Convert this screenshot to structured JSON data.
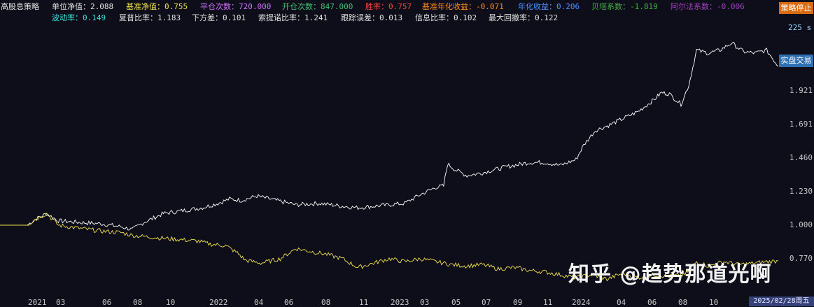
{
  "title": "高股息策略",
  "stats_row1": [
    {
      "label": "单位净值：",
      "value": "2.088",
      "color": "#e0e0e0"
    },
    {
      "label": "基准净值：",
      "value": "0.755",
      "color": "#f2e14b"
    },
    {
      "label": "平仓次数：",
      "value": "720.000",
      "color": "#d070ff"
    },
    {
      "label": "开仓次数：",
      "value": "847.000",
      "color": "#40c070"
    },
    {
      "label": "胜率：",
      "value": "0.757",
      "color": "#ff4040"
    },
    {
      "label": "基准年化收益：",
      "value": "-0.071",
      "color": "#ff8c1a"
    },
    {
      "label": "年化收益：",
      "value": "0.206",
      "color": "#4f8fff"
    },
    {
      "label": "贝塔系数：",
      "value": "-1.819",
      "color": "#40b040"
    },
    {
      "label": "阿尔法系数：",
      "value": "-0.006",
      "color": "#a040c0"
    }
  ],
  "stats_row2": [
    {
      "label": "波动率：",
      "value": "0.149",
      "color": "#40e0e0"
    },
    {
      "label": "夏普比率：",
      "value": "1.183",
      "color": "#e0e0e0"
    },
    {
      "label": "下方差：",
      "value": "0.101",
      "color": "#e0e0e0"
    },
    {
      "label": "索提诺比率：",
      "value": "1.241",
      "color": "#e0e0e0"
    },
    {
      "label": "跟踪误差：",
      "value": "0.013",
      "color": "#e0e0e0"
    },
    {
      "label": "信息比率：",
      "value": "0.102",
      "color": "#e0e0e0"
    },
    {
      "label": "最大回撤率：",
      "value": "0.122",
      "color": "#e0e0e0"
    }
  ],
  "buttons": {
    "stop": "策略停止"
  },
  "badges": {
    "live": "实盘交易",
    "interval": "225 s",
    "date": "2025/02/28周五"
  },
  "watermark": "知乎 @趋势那道光啊",
  "chart_data": {
    "type": "line",
    "yticks": [
      "1.921",
      "1.691",
      "1.460",
      "1.230",
      "1.000",
      "0.770"
    ],
    "ytick_values": [
      1.921,
      1.691,
      1.46,
      1.23,
      1.0,
      0.77
    ],
    "xticks": [
      "2021",
      "03",
      "06",
      "08",
      "10",
      "2022",
      "04",
      "06",
      "08",
      "11",
      "2023",
      "03",
      "05",
      "07",
      "09",
      "11",
      "2024",
      "04",
      "06",
      "08",
      "10"
    ],
    "series": [
      {
        "name": "单位净值",
        "color": "#ffffff",
        "points": [
          [
            0,
            1.0
          ],
          [
            0.035,
            1.0
          ],
          [
            0.045,
            1.04
          ],
          [
            0.06,
            1.08
          ],
          [
            0.075,
            1.03
          ],
          [
            0.1,
            1.02
          ],
          [
            0.13,
            1.01
          ],
          [
            0.155,
            0.99
          ],
          [
            0.17,
            0.97
          ],
          [
            0.185,
            1.02
          ],
          [
            0.21,
            1.08
          ],
          [
            0.235,
            1.1
          ],
          [
            0.26,
            1.12
          ],
          [
            0.28,
            1.15
          ],
          [
            0.295,
            1.18
          ],
          [
            0.31,
            1.17
          ],
          [
            0.33,
            1.2
          ],
          [
            0.355,
            1.17
          ],
          [
            0.38,
            1.14
          ],
          [
            0.41,
            1.15
          ],
          [
            0.44,
            1.13
          ],
          [
            0.46,
            1.12
          ],
          [
            0.48,
            1.13
          ],
          [
            0.5,
            1.14
          ],
          [
            0.52,
            1.15
          ],
          [
            0.54,
            1.21
          ],
          [
            0.56,
            1.26
          ],
          [
            0.57,
            1.27
          ],
          [
            0.575,
            1.42
          ],
          [
            0.585,
            1.38
          ],
          [
            0.6,
            1.34
          ],
          [
            0.62,
            1.36
          ],
          [
            0.65,
            1.4
          ],
          [
            0.68,
            1.43
          ],
          [
            0.7,
            1.43
          ],
          [
            0.72,
            1.41
          ],
          [
            0.74,
            1.45
          ],
          [
            0.75,
            1.55
          ],
          [
            0.765,
            1.65
          ],
          [
            0.78,
            1.68
          ],
          [
            0.8,
            1.73
          ],
          [
            0.82,
            1.78
          ],
          [
            0.84,
            1.86
          ],
          [
            0.85,
            1.91
          ],
          [
            0.86,
            1.9
          ],
          [
            0.875,
            1.83
          ],
          [
            0.885,
            1.96
          ],
          [
            0.895,
            2.2
          ],
          [
            0.91,
            2.18
          ],
          [
            0.925,
            2.2
          ],
          [
            0.94,
            2.25
          ],
          [
            0.955,
            2.19
          ],
          [
            0.97,
            2.18
          ],
          [
            0.985,
            2.2
          ],
          [
            1.0,
            2.09
          ]
        ]
      },
      {
        "name": "基准净值",
        "color": "#f2e14b",
        "points": [
          [
            0,
            1.0
          ],
          [
            0.035,
            1.0
          ],
          [
            0.045,
            1.04
          ],
          [
            0.06,
            1.08
          ],
          [
            0.075,
            1.0
          ],
          [
            0.1,
            0.98
          ],
          [
            0.13,
            0.96
          ],
          [
            0.155,
            0.95
          ],
          [
            0.17,
            0.93
          ],
          [
            0.19,
            0.92
          ],
          [
            0.21,
            0.91
          ],
          [
            0.235,
            0.9
          ],
          [
            0.255,
            0.89
          ],
          [
            0.27,
            0.87
          ],
          [
            0.29,
            0.86
          ],
          [
            0.305,
            0.81
          ],
          [
            0.315,
            0.76
          ],
          [
            0.335,
            0.74
          ],
          [
            0.36,
            0.77
          ],
          [
            0.38,
            0.84
          ],
          [
            0.4,
            0.82
          ],
          [
            0.42,
            0.8
          ],
          [
            0.44,
            0.77
          ],
          [
            0.46,
            0.71
          ],
          [
            0.48,
            0.74
          ],
          [
            0.5,
            0.77
          ],
          [
            0.52,
            0.75
          ],
          [
            0.54,
            0.77
          ],
          [
            0.56,
            0.75
          ],
          [
            0.58,
            0.73
          ],
          [
            0.6,
            0.72
          ],
          [
            0.62,
            0.73
          ],
          [
            0.64,
            0.7
          ],
          [
            0.66,
            0.71
          ],
          [
            0.68,
            0.69
          ],
          [
            0.7,
            0.68
          ],
          [
            0.72,
            0.66
          ],
          [
            0.74,
            0.64
          ],
          [
            0.76,
            0.66
          ],
          [
            0.78,
            0.63
          ],
          [
            0.8,
            0.67
          ],
          [
            0.82,
            0.64
          ],
          [
            0.84,
            0.66
          ],
          [
            0.86,
            0.65
          ],
          [
            0.88,
            0.66
          ],
          [
            0.895,
            0.75
          ],
          [
            0.91,
            0.72
          ],
          [
            0.93,
            0.75
          ],
          [
            0.95,
            0.73
          ],
          [
            0.97,
            0.74
          ],
          [
            0.985,
            0.75
          ],
          [
            1.0,
            0.755
          ]
        ]
      }
    ]
  }
}
